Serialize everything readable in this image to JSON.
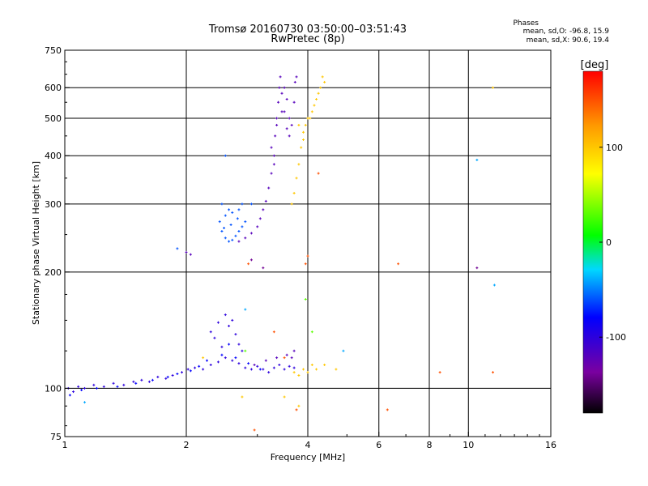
{
  "chart_data": {
    "type": "scatter",
    "title": "Tromsø 20160730 03:50:00–03:51:43",
    "subtitle": "RwPretec (8p)",
    "xlabel": "Frequency [MHz]",
    "ylabel": "Stationary phase Virtual Height [km]",
    "xscale": "log",
    "yscale": "log",
    "xlim": [
      1,
      16
    ],
    "ylim": [
      75,
      750
    ],
    "grid": true,
    "x_ticks": [
      1,
      2,
      4,
      6,
      8,
      10,
      16
    ],
    "x_tick_labels": [
      "1",
      "2",
      "4",
      "6",
      "8",
      "10",
      "16"
    ],
    "x_gridlines": [
      2,
      4,
      6,
      8,
      10
    ],
    "y_ticks": [
      75,
      100,
      200,
      300,
      400,
      500,
      600,
      750
    ],
    "y_tick_labels": [
      "75",
      "100",
      "200",
      "300",
      "400",
      "500",
      "600",
      "750"
    ],
    "y_gridlines": [
      100,
      200,
      300,
      400,
      500,
      600
    ],
    "legend": {
      "title": "Phases",
      "line1": "mean, sd,O: -96.8, 15.9",
      "line2": "mean, sd,X:  90.6, 19.4",
      "placement": "top-right"
    },
    "colorbar": {
      "label": "[deg]",
      "range": [
        -180,
        180
      ],
      "ticks": [
        100,
        0,
        -100
      ],
      "tick_labels": [
        "100",
        "0",
        "-100"
      ],
      "colormap": "rainbow"
    },
    "series": [
      {
        "phase_deg": -100,
        "comment": "lower ordinary echoes",
        "points": [
          [
            1.02,
            100
          ],
          [
            1.05,
            98
          ],
          [
            1.08,
            101
          ],
          [
            1.12,
            100
          ],
          [
            1.18,
            102
          ],
          [
            1.25,
            101
          ],
          [
            1.32,
            103
          ],
          [
            1.4,
            102
          ],
          [
            1.48,
            104
          ],
          [
            1.55,
            105
          ],
          [
            1.62,
            104
          ],
          [
            1.7,
            107
          ],
          [
            1.78,
            106
          ],
          [
            1.85,
            108
          ],
          [
            1.95,
            110
          ],
          [
            2.02,
            112
          ],
          [
            2.1,
            113
          ],
          [
            2.2,
            112
          ],
          [
            2.3,
            115
          ],
          [
            2.4,
            117
          ],
          [
            2.5,
            120
          ],
          [
            2.6,
            118
          ],
          [
            2.7,
            116
          ],
          [
            2.8,
            113
          ],
          [
            2.9,
            112
          ],
          [
            3.0,
            114
          ],
          [
            3.1,
            112
          ],
          [
            3.2,
            110
          ],
          [
            3.3,
            113
          ],
          [
            3.4,
            115
          ],
          [
            3.5,
            112
          ],
          [
            3.6,
            114
          ],
          [
            3.7,
            113
          ],
          [
            2.3,
            140
          ],
          [
            2.4,
            148
          ],
          [
            2.5,
            155
          ],
          [
            2.55,
            145
          ],
          [
            2.6,
            150
          ],
          [
            2.65,
            138
          ],
          [
            2.7,
            130
          ],
          [
            2.75,
            125
          ],
          [
            2.35,
            135
          ],
          [
            2.45,
            128
          ]
        ]
      },
      {
        "phase_deg": -80,
        "comment": "lower trace, bluish",
        "points": [
          [
            1.03,
            96
          ],
          [
            1.1,
            99
          ],
          [
            1.2,
            100
          ],
          [
            1.35,
            101
          ],
          [
            1.5,
            103
          ],
          [
            1.65,
            105
          ],
          [
            1.8,
            107
          ],
          [
            1.9,
            109
          ],
          [
            2.05,
            111
          ],
          [
            2.15,
            114
          ],
          [
            2.25,
            118
          ],
          [
            2.45,
            122
          ],
          [
            2.55,
            130
          ],
          [
            2.65,
            120
          ],
          [
            2.85,
            116
          ],
          [
            3.05,
            112
          ]
        ]
      },
      {
        "phase_deg": -60,
        "comment": "F-region ordinary cusp",
        "points": [
          [
            2.42,
            270
          ],
          [
            2.45,
            255
          ],
          [
            2.5,
            245
          ],
          [
            2.55,
            240
          ],
          [
            2.6,
            242
          ],
          [
            2.65,
            248
          ],
          [
            2.7,
            255
          ],
          [
            2.75,
            262
          ],
          [
            2.8,
            270
          ],
          [
            2.5,
            280
          ],
          [
            2.55,
            290
          ],
          [
            2.6,
            285
          ],
          [
            2.7,
            290
          ],
          [
            2.75,
            300
          ],
          [
            2.45,
            300
          ],
          [
            2.48,
            260
          ],
          [
            2.58,
            265
          ],
          [
            2.68,
            275
          ],
          [
            2.9,
            300
          ],
          [
            2.5,
            400
          ],
          [
            1.9,
            230
          ]
        ]
      },
      {
        "phase_deg": -120,
        "comment": "F-region ordinary trace rising",
        "points": [
          [
            2.7,
            240
          ],
          [
            2.8,
            245
          ],
          [
            2.9,
            252
          ],
          [
            3.0,
            262
          ],
          [
            3.05,
            275
          ],
          [
            3.1,
            290
          ],
          [
            3.15,
            305
          ],
          [
            3.2,
            330
          ],
          [
            3.25,
            360
          ],
          [
            3.3,
            400
          ],
          [
            3.32,
            450
          ],
          [
            3.35,
            500
          ],
          [
            3.38,
            550
          ],
          [
            3.4,
            600
          ],
          [
            3.42,
            640
          ],
          [
            3.45,
            580
          ],
          [
            3.5,
            520
          ],
          [
            3.55,
            470
          ],
          [
            3.6,
            450
          ],
          [
            3.65,
            480
          ],
          [
            3.7,
            550
          ],
          [
            3.72,
            620
          ],
          [
            3.75,
            640
          ],
          [
            3.25,
            420
          ],
          [
            3.3,
            380
          ],
          [
            3.35,
            480
          ],
          [
            3.45,
            520
          ],
          [
            3.5,
            600
          ],
          [
            3.55,
            560
          ],
          [
            3.6,
            500
          ],
          [
            2.0,
            225
          ],
          [
            2.05,
            222
          ],
          [
            2.95,
            115
          ],
          [
            3.15,
            118
          ],
          [
            3.35,
            120
          ],
          [
            3.55,
            122
          ],
          [
            3.65,
            120
          ],
          [
            3.7,
            125
          ]
        ]
      },
      {
        "phase_deg": 100,
        "comment": "extraordinary echoes",
        "points": [
          [
            3.65,
            300
          ],
          [
            3.7,
            320
          ],
          [
            3.75,
            350
          ],
          [
            3.8,
            380
          ],
          [
            3.85,
            420
          ],
          [
            3.9,
            460
          ],
          [
            3.95,
            480
          ],
          [
            4.05,
            500
          ],
          [
            4.1,
            520
          ],
          [
            4.2,
            560
          ],
          [
            4.3,
            600
          ],
          [
            4.35,
            640
          ],
          [
            4.4,
            620
          ],
          [
            4.0,
            500
          ],
          [
            3.8,
            480
          ],
          [
            3.9,
            440
          ],
          [
            4.15,
            540
          ],
          [
            4.25,
            580
          ],
          [
            3.7,
            110
          ],
          [
            3.8,
            108
          ],
          [
            3.9,
            112
          ],
          [
            4.0,
            110
          ],
          [
            4.1,
            115
          ],
          [
            4.2,
            112
          ],
          [
            4.4,
            115
          ],
          [
            4.7,
            112
          ],
          [
            2.2,
            120
          ],
          [
            3.5,
            95
          ],
          [
            3.8,
            90
          ],
          [
            2.75,
            95
          ],
          [
            11.5,
            600
          ]
        ]
      },
      {
        "phase_deg": 150,
        "comment": "scattered orange echoes",
        "points": [
          [
            4.25,
            360
          ],
          [
            4.0,
            220
          ],
          [
            3.95,
            210
          ],
          [
            2.85,
            210
          ],
          [
            2.95,
            78
          ],
          [
            3.3,
            140
          ],
          [
            6.7,
            210
          ],
          [
            8.5,
            110
          ],
          [
            11.5,
            110
          ],
          [
            6.3,
            88
          ],
          [
            3.75,
            88
          ],
          [
            3.5,
            120
          ]
        ]
      },
      {
        "phase_deg": 30,
        "comment": "scattered greenish",
        "points": [
          [
            3.95,
            170
          ],
          [
            2.8,
            125
          ],
          [
            4.1,
            140
          ]
        ]
      },
      {
        "phase_deg": -40,
        "comment": "scattered cyan",
        "points": [
          [
            1.12,
            92
          ],
          [
            10.5,
            390
          ],
          [
            11.6,
            185
          ],
          [
            4.9,
            125
          ],
          [
            2.8,
            160
          ]
        ]
      },
      {
        "phase_deg": -140,
        "comment": "scattered dark purple",
        "points": [
          [
            10.5,
            205
          ],
          [
            3.1,
            205
          ],
          [
            2.9,
            215
          ]
        ]
      }
    ]
  }
}
